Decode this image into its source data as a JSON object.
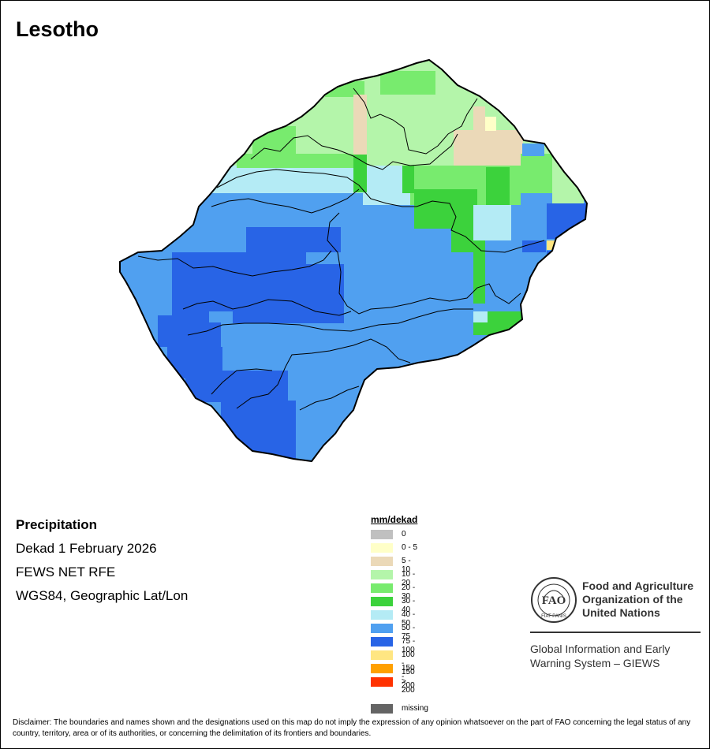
{
  "title": "Lesotho",
  "info": {
    "heading": "Precipitation",
    "period": "Dekad 1 February 2026",
    "source": "FEWS NET RFE",
    "projection": "WGS84, Geographic Lat/Lon"
  },
  "legend": {
    "title": "mm/dekad",
    "items": [
      {
        "label": "0",
        "color": "#c0c0c0"
      },
      {
        "label": "0 - 5",
        "color": "#ffffc8"
      },
      {
        "label": "5 - 10",
        "color": "#ebd9b8"
      },
      {
        "label": "10 - 20",
        "color": "#b4f5aa"
      },
      {
        "label": "20 - 30",
        "color": "#78eb6e"
      },
      {
        "label": "30 - 40",
        "color": "#3cd23c"
      },
      {
        "label": "40 - 50",
        "color": "#b4ebf5"
      },
      {
        "label": "50 - 75",
        "color": "#50a0f0"
      },
      {
        "label": "75 - 100",
        "color": "#2864e6"
      },
      {
        "label": "100 - 150",
        "color": "#ffe682"
      },
      {
        "label": "150 - 200",
        "color": "#ffa000"
      },
      {
        "label": "> 200",
        "color": "#ff3200"
      }
    ],
    "missing": {
      "label": "missing",
      "color": "#646464"
    }
  },
  "fao": {
    "org_line1": "Food and Agriculture",
    "org_line2": "Organization of the",
    "org_line3": "United Nations",
    "giews_line1": "Global Information and Early",
    "giews_line2": "Warning System – GIEWS",
    "logo_letters": "FAO",
    "logo_motto": "FIAT PANIS"
  },
  "disclaimer": "Disclaimer: The boundaries and names shown and the designations used on this map do not imply the expression of any opinion whatsoever on the part of FAO concerning the legal status of any country, territory, area or of its authorities, or concerning the delimitation of its frontiers and boundaries."
}
